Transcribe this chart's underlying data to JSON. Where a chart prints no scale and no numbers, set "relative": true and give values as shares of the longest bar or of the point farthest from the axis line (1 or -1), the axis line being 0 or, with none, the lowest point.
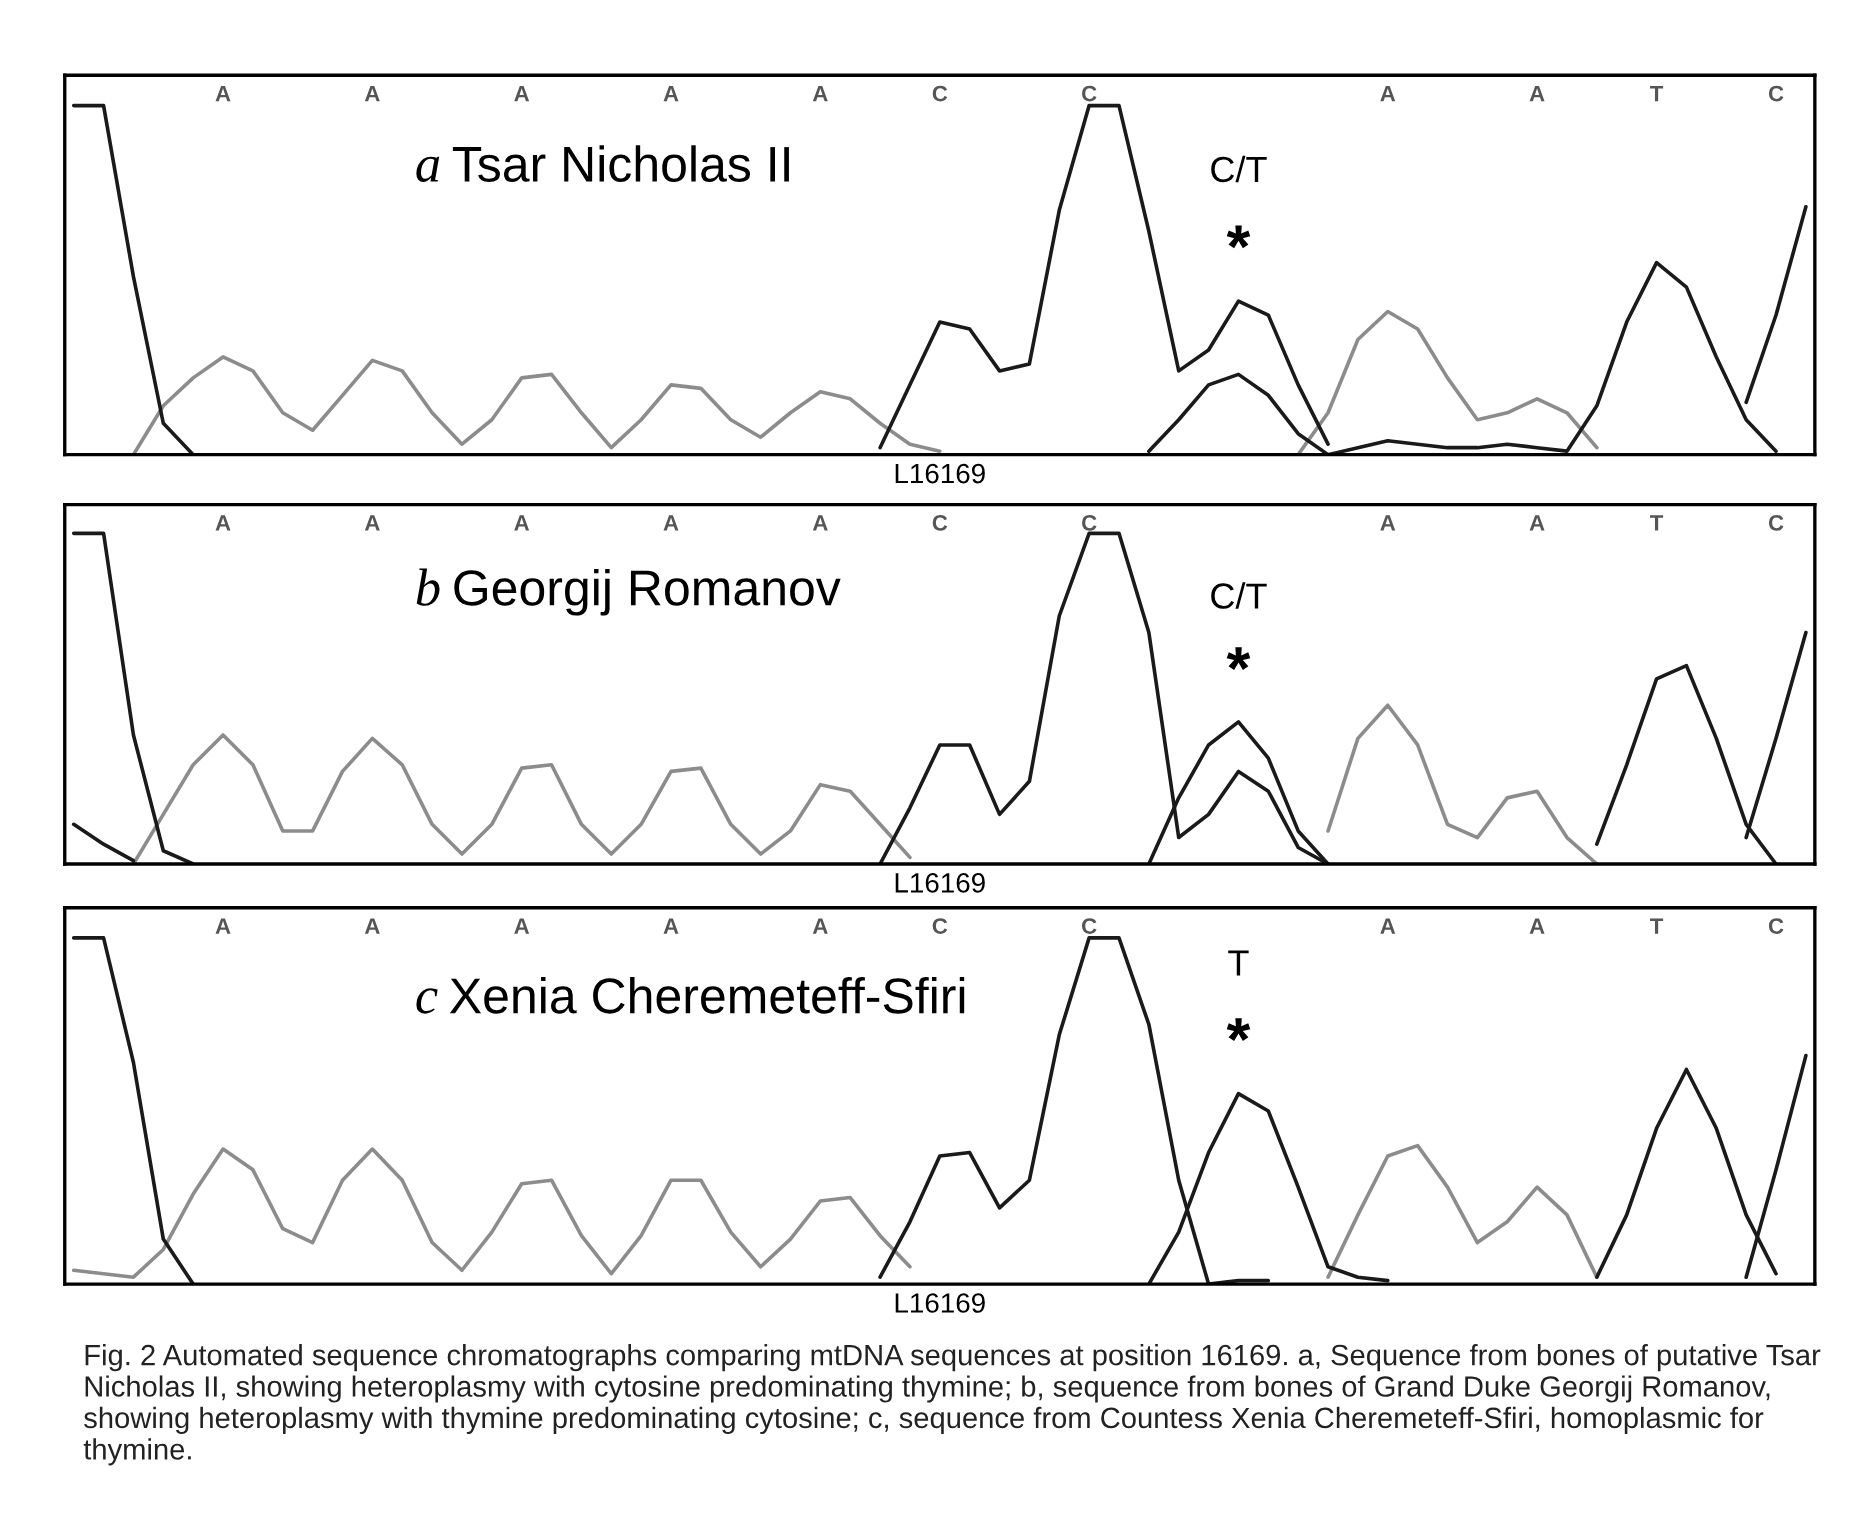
{
  "chart_data": [
    {
      "type": "line",
      "title": "a Tsar Nicholas II",
      "xlabel": "L16169",
      "relative": true,
      "tick_labels": "x",
      "categories": [
        null,
        null,
        null,
        null,
        null,
        "A",
        null,
        null,
        null,
        null,
        "A",
        null,
        null,
        null,
        null,
        "A",
        null,
        null,
        null,
        null,
        "A",
        null,
        null,
        null,
        null,
        "A",
        null,
        null,
        null,
        "C",
        null,
        null,
        null,
        null,
        "C",
        null,
        null,
        null,
        null,
        null,
        null,
        null,
        null,
        null,
        "A",
        null,
        null,
        null,
        null,
        "A",
        null,
        null,
        null,
        "T",
        null,
        null,
        null,
        "C",
        null
      ],
      "annotations": [
        "C/T",
        "*"
      ],
      "series": [
        {
          "color": "#8c8c8c",
          "values": [
            null,
            null,
            0.0,
            0.14,
            0.22,
            0.28,
            0.24,
            0.12,
            0.07,
            0.17,
            0.27,
            0.24,
            0.12,
            0.03,
            0.1,
            0.22,
            0.23,
            0.12,
            0.02,
            0.1,
            0.2,
            0.19,
            0.1,
            0.05,
            0.12,
            0.18,
            0.16,
            0.09,
            0.03,
            0.01,
            null,
            null,
            null,
            null,
            null,
            null,
            null,
            null,
            null,
            null,
            null,
            0.0,
            0.12,
            0.33,
            0.41,
            0.36,
            0.22,
            0.1,
            0.12,
            0.16,
            0.12,
            0.02,
            null,
            null,
            null,
            null,
            null,
            null,
            null
          ]
        },
        {
          "color": "#1a1a1a",
          "values": [
            1,
            1,
            0.51,
            0.09,
            0.0,
            null,
            null,
            null,
            null,
            null,
            null,
            null,
            null,
            null,
            null,
            null,
            null,
            null,
            null,
            null,
            null,
            null,
            null,
            null,
            null,
            null,
            null,
            0.02,
            0.2,
            0.38,
            0.36,
            0.24,
            0.26,
            0.7,
            1,
            1,
            0.64,
            0.24,
            0.3,
            0.44,
            0.4,
            0.2,
            0.03,
            null,
            null,
            null,
            null,
            null,
            null,
            null,
            null,
            null,
            null,
            null,
            null,
            null,
            0.15,
            0.4,
            0.71
          ]
        },
        {
          "color": "#1a1a1a",
          "values": [
            null,
            null,
            null,
            null,
            null,
            null,
            null,
            null,
            null,
            null,
            null,
            null,
            null,
            null,
            null,
            null,
            null,
            null,
            null,
            null,
            null,
            null,
            null,
            null,
            null,
            null,
            null,
            null,
            null,
            null,
            null,
            null,
            null,
            null,
            null,
            null,
            0.01,
            0.1,
            0.2,
            0.23,
            0.17,
            0.06,
            0.0,
            0.02,
            0.04,
            0.03,
            0.02,
            0.02,
            0.03,
            0.02,
            0.01,
            0.14,
            0.38,
            0.55,
            0.48,
            0.28,
            0.1,
            0.01,
            null
          ]
        }
      ]
    },
    {
      "type": "line",
      "title": "b Georgij Romanov",
      "xlabel": "L16169",
      "relative": true,
      "tick_labels": "x",
      "categories": [
        null,
        null,
        null,
        null,
        null,
        "A",
        null,
        null,
        null,
        null,
        "A",
        null,
        null,
        null,
        null,
        "A",
        null,
        null,
        null,
        null,
        "A",
        null,
        null,
        null,
        null,
        "A",
        null,
        null,
        null,
        "C",
        null,
        null,
        null,
        null,
        "C",
        null,
        null,
        null,
        null,
        null,
        null,
        null,
        null,
        null,
        "A",
        null,
        null,
        null,
        null,
        "A",
        null,
        null,
        null,
        "T",
        null,
        null,
        null,
        "C",
        null
      ],
      "annotations": [
        "C/T",
        "*"
      ],
      "series": [
        {
          "color": "#8c8c8c",
          "values": [
            null,
            null,
            0.0,
            0.15,
            0.3,
            0.39,
            0.3,
            0.1,
            0.1,
            0.28,
            0.38,
            0.3,
            0.12,
            0.03,
            0.12,
            0.29,
            0.3,
            0.12,
            0.03,
            0.12,
            0.28,
            0.29,
            0.12,
            0.03,
            0.1,
            0.24,
            0.22,
            0.12,
            0.02,
            null,
            null,
            null,
            null,
            null,
            null,
            null,
            null,
            null,
            null,
            null,
            null,
            null,
            0.1,
            0.38,
            0.48,
            0.36,
            0.12,
            0.08,
            0.2,
            0.22,
            0.08,
            0.0,
            null,
            null,
            null,
            null,
            null,
            null,
            null
          ]
        },
        {
          "color": "#1a1a1a",
          "values": [
            1,
            1,
            0.39,
            0.04,
            0.0,
            null,
            null,
            null,
            null,
            null,
            null,
            null,
            null,
            null,
            null,
            null,
            null,
            null,
            null,
            null,
            null,
            null,
            null,
            null,
            null,
            null,
            null,
            0.0,
            0.17,
            0.36,
            0.36,
            0.15,
            0.25,
            0.75,
            1,
            1,
            0.7,
            0.08,
            0.15,
            0.28,
            0.22,
            0.05,
            0.0,
            null,
            null,
            null,
            null,
            null,
            null,
            null,
            null,
            null,
            null,
            null,
            null,
            null,
            0.08,
            0.38,
            0.7
          ]
        },
        {
          "color": "#1a1a1a",
          "values": [
            0.12,
            0.06,
            0.01,
            null,
            null,
            null,
            null,
            null,
            null,
            null,
            null,
            null,
            null,
            null,
            null,
            null,
            null,
            null,
            null,
            null,
            null,
            null,
            null,
            null,
            null,
            null,
            null,
            null,
            null,
            null,
            null,
            null,
            null,
            null,
            null,
            null,
            0.0,
            0.2,
            0.36,
            0.43,
            0.32,
            0.1,
            0.0,
            null,
            null,
            null,
            null,
            null,
            null,
            null,
            null,
            0.06,
            0.3,
            0.56,
            0.6,
            0.38,
            0.12,
            0.0,
            null
          ]
        }
      ]
    },
    {
      "type": "line",
      "title": "c Xenia Cheremeteff-Sfiri",
      "xlabel": "L16169",
      "relative": true,
      "tick_labels": "x",
      "categories": [
        null,
        null,
        null,
        null,
        null,
        "A",
        null,
        null,
        null,
        null,
        "A",
        null,
        null,
        null,
        null,
        "A",
        null,
        null,
        null,
        null,
        "A",
        null,
        null,
        null,
        null,
        "A",
        null,
        null,
        null,
        "C",
        null,
        null,
        null,
        null,
        "C",
        null,
        null,
        null,
        null,
        null,
        null,
        null,
        null,
        null,
        "A",
        null,
        null,
        null,
        null,
        "A",
        null,
        null,
        null,
        "T",
        null,
        null,
        null,
        "C",
        null
      ],
      "annotations": [
        "T",
        "*",
        "Fig. 2 Automated sequence chromatographs comparing mtDNA sequences at position 16169. a, Sequence from bones of putative Tsar Nicholas II, showing heteroplasmy with cytosine predominating thymine; b, sequence from bones of Grand Duke Georgij Romanov, showing heteroplasmy with thymine predominating cytosine; c, sequence from Countess Xenia Cheremeteff-Sfiri, homoplasmic for thymine."
      ],
      "series": [
        {
          "color": "#8c8c8c",
          "values": [
            0.04,
            0.03,
            0.02,
            0.1,
            0.26,
            0.39,
            0.33,
            0.16,
            0.12,
            0.3,
            0.39,
            0.3,
            0.12,
            0.04,
            0.15,
            0.29,
            0.3,
            0.14,
            0.03,
            0.14,
            0.3,
            0.3,
            0.15,
            0.05,
            0.13,
            0.24,
            0.25,
            0.14,
            0.05,
            null,
            null,
            null,
            null,
            null,
            null,
            null,
            null,
            null,
            null,
            null,
            null,
            null,
            0.02,
            0.2,
            0.37,
            0.4,
            0.28,
            0.12,
            0.18,
            0.28,
            0.2,
            0.02,
            null,
            null,
            null,
            null,
            null,
            null,
            null
          ]
        },
        {
          "color": "#1a1a1a",
          "values": [
            1,
            1,
            0.64,
            0.13,
            0.0,
            null,
            null,
            null,
            null,
            null,
            null,
            null,
            null,
            null,
            null,
            null,
            null,
            null,
            null,
            null,
            null,
            null,
            null,
            null,
            null,
            null,
            null,
            0.02,
            0.18,
            0.37,
            0.38,
            0.22,
            0.3,
            0.72,
            1,
            1,
            0.75,
            0.3,
            0.0,
            0.01,
            0.01,
            null,
            null,
            null,
            null,
            null,
            null,
            null,
            null,
            null,
            null,
            null,
            null,
            null,
            null,
            null,
            0.02,
            0.33,
            0.66
          ]
        },
        {
          "color": "#1a1a1a",
          "values": [
            null,
            null,
            null,
            null,
            null,
            null,
            null,
            null,
            null,
            null,
            null,
            null,
            null,
            null,
            null,
            null,
            null,
            null,
            null,
            null,
            null,
            null,
            null,
            null,
            null,
            null,
            null,
            null,
            null,
            null,
            null,
            null,
            null,
            null,
            null,
            null,
            0.0,
            0.15,
            0.38,
            0.55,
            0.5,
            0.28,
            0.05,
            0.02,
            0.01,
            null,
            null,
            null,
            null,
            null,
            null,
            0.02,
            0.2,
            0.45,
            0.62,
            0.45,
            0.2,
            0.03,
            null
          ]
        }
      ]
    }
  ]
}
